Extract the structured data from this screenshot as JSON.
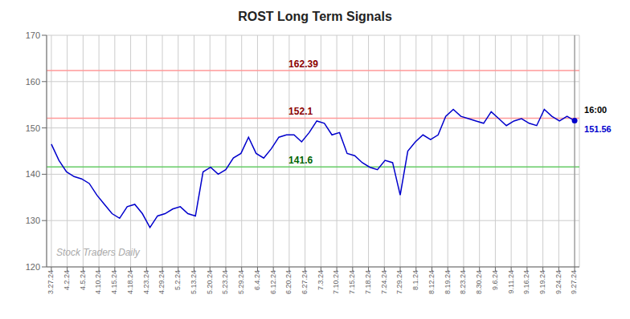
{
  "chart_data": {
    "type": "line",
    "title": "ROST Long Term Signals",
    "watermark": "Stock Traders Daily",
    "grid": true,
    "xlim": [
      -0.3,
      33.3
    ],
    "xticks": [
      {
        "value": 0,
        "label": "3.27.24"
      },
      {
        "value": 1,
        "label": "4.2.24"
      },
      {
        "value": 2,
        "label": "4.5.24"
      },
      {
        "value": 3,
        "label": "4.10.24"
      },
      {
        "value": 4,
        "label": "4.15.24"
      },
      {
        "value": 5,
        "label": "4.18.24"
      },
      {
        "value": 6,
        "label": "4.23.24"
      },
      {
        "value": 7,
        "label": "4.29.24"
      },
      {
        "value": 8,
        "label": "5.2.24"
      },
      {
        "value": 9,
        "label": "5.13.24"
      },
      {
        "value": 10,
        "label": "5.20.24"
      },
      {
        "value": 11,
        "label": "5.23.24"
      },
      {
        "value": 12,
        "label": "5.29.24"
      },
      {
        "value": 13,
        "label": "6.4.24"
      },
      {
        "value": 14,
        "label": "6.12.24"
      },
      {
        "value": 15,
        "label": "6.20.24"
      },
      {
        "value": 16,
        "label": "6.27.24"
      },
      {
        "value": 17,
        "label": "7.3.24"
      },
      {
        "value": 18,
        "label": "7.10.24"
      },
      {
        "value": 19,
        "label": "7.15.24"
      },
      {
        "value": 20,
        "label": "7.18.24"
      },
      {
        "value": 21,
        "label": "7.24.24"
      },
      {
        "value": 22,
        "label": "7.29.24"
      },
      {
        "value": 23,
        "label": "8.1.24"
      },
      {
        "value": 24,
        "label": "8.12.24"
      },
      {
        "value": 25,
        "label": "8.19.24"
      },
      {
        "value": 26,
        "label": "8.23.24"
      },
      {
        "value": 27,
        "label": "8.30.24"
      },
      {
        "value": 28,
        "label": "9.6.24"
      },
      {
        "value": 29,
        "label": "9.11.24"
      },
      {
        "value": 30,
        "label": "9.16.24"
      },
      {
        "value": 31,
        "label": "9.19.24"
      },
      {
        "value": 32,
        "label": "9.24.24"
      },
      {
        "value": 33,
        "label": "9.27.24"
      }
    ],
    "ylim": [
      120,
      170
    ],
    "yticks": [
      120,
      130,
      140,
      150,
      160,
      170
    ],
    "x": [
      0,
      0.478261,
      0.956522,
      1.434783,
      1.913043,
      2.391304,
      2.869565,
      3.347826,
      3.826087,
      4.304348,
      4.782609,
      5.26087,
      5.73913,
      6.217391,
      6.695652,
      7.173913,
      7.652174,
      8.130435,
      8.608696,
      9.086957,
      9.565217,
      10.043478,
      10.521739,
      11,
      11.478261,
      11.956522,
      12.434783,
      12.913043,
      13.391304,
      13.869565,
      14.347826,
      14.826087,
      15.304348,
      15.782609,
      16.26087,
      16.73913,
      17.217391,
      17.695652,
      18.173913,
      18.652174,
      19.130435,
      19.608696,
      20.086957,
      20.565217,
      21.043478,
      21.521739,
      22,
      22.478261,
      22.956522,
      23.434783,
      23.913043,
      24.391304,
      24.869565,
      25.347826,
      25.826087,
      26.304348,
      26.782609,
      27.26087,
      27.73913,
      28.217391,
      28.695652,
      29.173913,
      29.652174,
      30.130435,
      30.608696,
      31.086957,
      31.565217,
      32.043478,
      32.521739,
      33
    ],
    "values": [
      146.5,
      143.0,
      140.5,
      139.5,
      139.0,
      138.0,
      135.5,
      133.5,
      131.5,
      130.5,
      133.0,
      133.5,
      131.5,
      128.5,
      131.0,
      131.5,
      132.5,
      133.0,
      131.5,
      131.0,
      140.5,
      141.5,
      140.0,
      141.0,
      143.5,
      144.5,
      148.0,
      144.5,
      143.5,
      145.5,
      148.0,
      148.5,
      148.5,
      147.0,
      149.0,
      151.5,
      151.0,
      148.5,
      149.0,
      144.5,
      144.0,
      142.5,
      141.5,
      141.0,
      143.0,
      142.5,
      135.5,
      145.0,
      147.0,
      148.5,
      147.5,
      148.5,
      152.5,
      154.0,
      152.5,
      152.0,
      151.5,
      151.0,
      153.5,
      152.0,
      150.5,
      151.5,
      152.0,
      151.0,
      150.5,
      154.0,
      152.5,
      151.5,
      152.5,
      151.56
    ],
    "color": "#0000cc",
    "levels": [
      {
        "y": 162.39,
        "label": "162.39",
        "line_color": "#ff9999",
        "label_color": "#8b0000"
      },
      {
        "y": 152.1,
        "label": "152.1",
        "line_color": "#ff9999",
        "label_color": "#8b0000"
      },
      {
        "y": 141.6,
        "label": "141.6",
        "line_color": "#66cc66",
        "label_color": "#006400"
      }
    ],
    "vertical_line": {
      "x": 33,
      "color": "#888888"
    },
    "last_point": {
      "x": 33,
      "y": 151.56,
      "time_label": "16:00",
      "price_label": "151.56"
    }
  }
}
